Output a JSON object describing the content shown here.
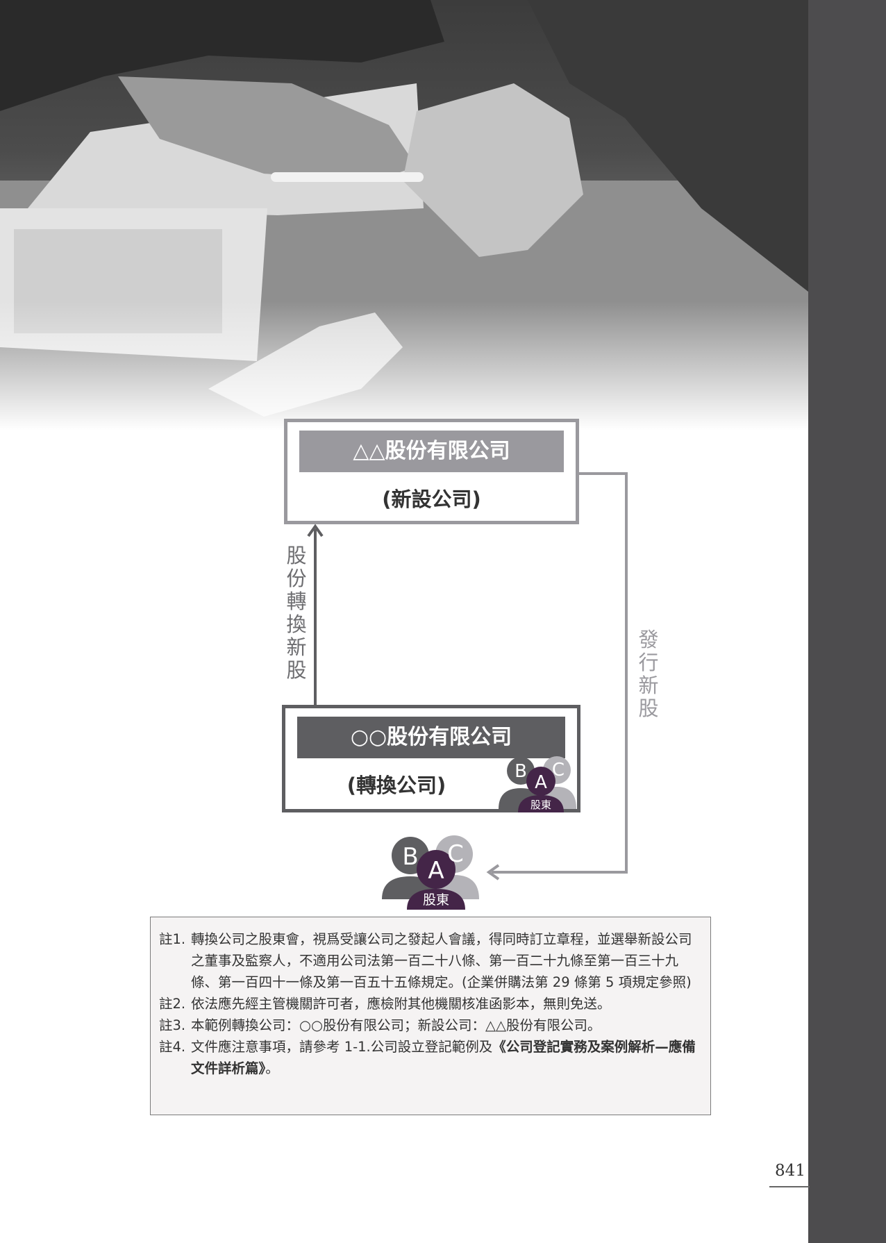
{
  "diagram": {
    "new_company": {
      "name": "△△股份有限公司",
      "role": "(新設公司)"
    },
    "converting_company": {
      "name": "○○股份有限公司",
      "role": "(轉換公司)"
    },
    "arrow_convert_label": [
      "股",
      "份",
      "轉",
      "換",
      "新",
      "股"
    ],
    "arrow_issue_label": [
      "發",
      "行",
      "新",
      "股"
    ],
    "shareholders_small": {
      "letters": [
        "A",
        "B",
        "C"
      ],
      "label": "股東"
    },
    "shareholders_large": {
      "letters": [
        "A",
        "B",
        "C"
      ],
      "label": "股東"
    }
  },
  "colors": {
    "light_gray": "#9a999e",
    "dark_gray": "#5e5e61",
    "purple": "#442548",
    "sidebar": "#4d4c4e"
  },
  "notes": [
    {
      "num": "註1.",
      "text": "轉換公司之股東會，視爲受讓公司之發起人會議，得同時訂立章程，並選舉新設公司之董事及監察人，不適用公司法第一百二十八條、第一百二十九條至第一百三十九條、第一百四十一條及第一百五十五條規定。(企業併購法第 29 條第 5 項規定參照)"
    },
    {
      "num": "註2.",
      "text": "依法應先經主管機關許可者，應檢附其他機關核准函影本，無則免送。"
    },
    {
      "num": "註3.",
      "text": "本範例轉換公司：○○股份有限公司；新設公司：△△股份有限公司。"
    },
    {
      "num": "註4.",
      "text_before": "文件應注意事項，請參考  1-1.公司設立登記範例及",
      "text_bold": "《公司登記實務及案例解析—應備文件詳析篇》",
      "text_after": "。"
    }
  ],
  "page_number": "841"
}
